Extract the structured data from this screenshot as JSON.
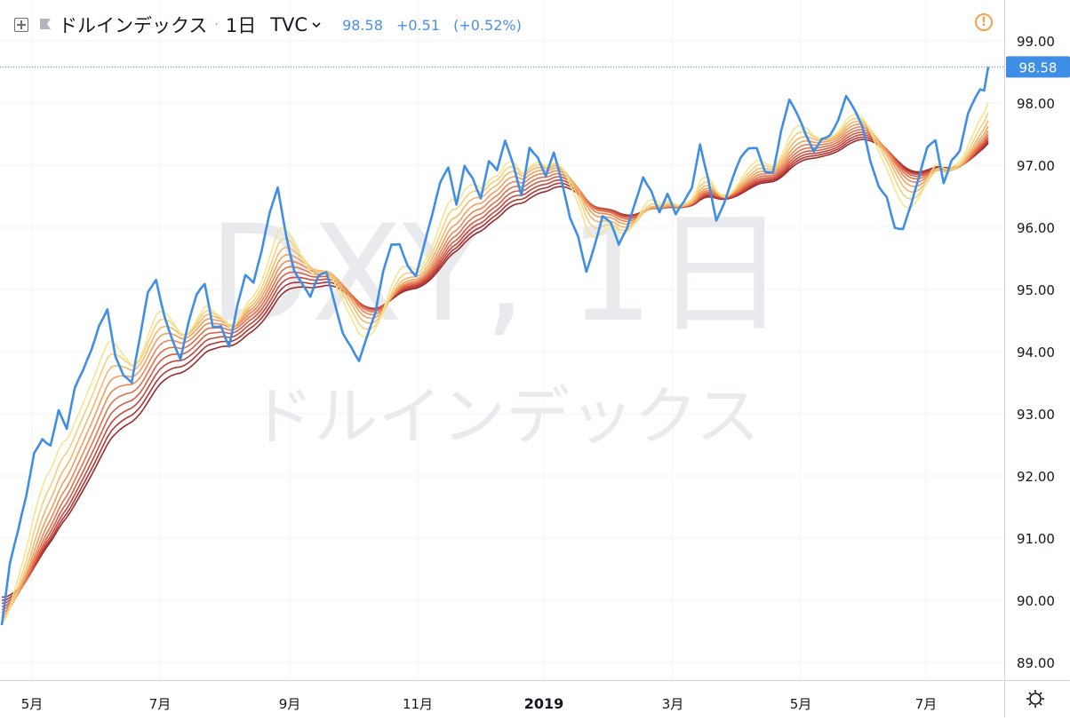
{
  "header": {
    "title": "ドルインデックス",
    "separator": "·",
    "interval": "1日",
    "exchange": "TVC",
    "last": "98.58",
    "change": "+0.51",
    "change_pct": "(+0.52%)"
  },
  "watermark": {
    "symbol": "DXY, 1日",
    "name": "ドルインデックス"
  },
  "colors": {
    "price_line": "#3f8ee6",
    "accent_quote": "#4a90e2",
    "ribbon": [
      "#f6e58d",
      "#f7d079",
      "#f5b76a",
      "#f29f5d",
      "#ec8753",
      "#e3704b",
      "#d65b43",
      "#c6463b",
      "#b13535",
      "#9a2b2b"
    ],
    "warn": "#f7a14a"
  },
  "price_axis": {
    "last_label": "98.58"
  },
  "chart_data": {
    "type": "line",
    "title": "ドルインデックス",
    "xlabel": "",
    "ylabel": "",
    "ylim": [
      88.8,
      99.3
    ],
    "x_tick_labels": [
      "5月",
      "7月",
      "9月",
      "11月",
      "2019",
      "3月",
      "5月",
      "7月"
    ],
    "y_ticks": [
      89,
      90,
      91,
      92,
      93,
      94,
      95,
      96,
      97,
      98,
      99
    ],
    "y_tick_labels": [
      "89.00",
      "90.00",
      "91.00",
      "92.00",
      "93.00",
      "94.00",
      "95.00",
      "96.00",
      "97.00",
      "98.00",
      "99.00"
    ],
    "last_value": 98.58,
    "grid": true,
    "price_anchors": [
      [
        0,
        89.6
      ],
      [
        2,
        90.5
      ],
      [
        4,
        91.0
      ],
      [
        6,
        91.6
      ],
      [
        8,
        92.4
      ],
      [
        10,
        92.7
      ],
      [
        12,
        92.6
      ],
      [
        14,
        93.1
      ],
      [
        16,
        92.7
      ],
      [
        18,
        93.3
      ],
      [
        20,
        93.6
      ],
      [
        22,
        94.0
      ],
      [
        24,
        94.5
      ],
      [
        26,
        94.8
      ],
      [
        28,
        94.0
      ],
      [
        30,
        93.6
      ],
      [
        32,
        93.4
      ],
      [
        34,
        94.1
      ],
      [
        36,
        94.9
      ],
      [
        38,
        95.2
      ],
      [
        40,
        94.7
      ],
      [
        42,
        94.3
      ],
      [
        44,
        93.9
      ],
      [
        46,
        94.4
      ],
      [
        48,
        94.8
      ],
      [
        50,
        95.0
      ],
      [
        52,
        94.4
      ],
      [
        54,
        94.5
      ],
      [
        56,
        94.2
      ],
      [
        58,
        94.8
      ],
      [
        60,
        95.2
      ],
      [
        62,
        95.0
      ],
      [
        64,
        95.5
      ],
      [
        66,
        96.2
      ],
      [
        68,
        96.7
      ],
      [
        70,
        96.0
      ],
      [
        72,
        95.4
      ],
      [
        74,
        95.1
      ],
      [
        76,
        94.8
      ],
      [
        78,
        95.1
      ],
      [
        80,
        95.2
      ],
      [
        82,
        94.8
      ],
      [
        84,
        94.4
      ],
      [
        86,
        94.2
      ],
      [
        88,
        93.9
      ],
      [
        90,
        94.2
      ],
      [
        92,
        94.5
      ],
      [
        94,
        95.2
      ],
      [
        96,
        95.7
      ],
      [
        98,
        95.8
      ],
      [
        100,
        95.5
      ],
      [
        102,
        95.3
      ],
      [
        104,
        95.7
      ],
      [
        106,
        96.1
      ],
      [
        108,
        96.6
      ],
      [
        110,
        96.9
      ],
      [
        112,
        96.4
      ],
      [
        114,
        97.1
      ],
      [
        116,
        96.9
      ],
      [
        118,
        96.5
      ],
      [
        120,
        97.0
      ],
      [
        122,
        96.8
      ],
      [
        124,
        97.3
      ],
      [
        126,
        97.0
      ],
      [
        128,
        96.6
      ],
      [
        130,
        97.4
      ],
      [
        132,
        97.2
      ],
      [
        134,
        96.8
      ],
      [
        136,
        97.1
      ],
      [
        138,
        96.6
      ],
      [
        140,
        96.1
      ],
      [
        142,
        95.9
      ],
      [
        144,
        95.4
      ],
      [
        146,
        95.8
      ],
      [
        148,
        96.2
      ],
      [
        150,
        96.0
      ],
      [
        152,
        95.6
      ],
      [
        154,
        95.9
      ],
      [
        156,
        96.4
      ],
      [
        158,
        96.9
      ],
      [
        160,
        96.7
      ],
      [
        162,
        96.3
      ],
      [
        164,
        96.5
      ],
      [
        166,
        96.1
      ],
      [
        168,
        96.3
      ],
      [
        170,
        96.6
      ],
      [
        172,
        97.4
      ],
      [
        174,
        96.9
      ],
      [
        176,
        96.2
      ],
      [
        178,
        96.4
      ],
      [
        180,
        96.7
      ],
      [
        182,
        97.0
      ],
      [
        184,
        97.2
      ],
      [
        186,
        97.3
      ],
      [
        188,
        97.0
      ],
      [
        190,
        97.0
      ],
      [
        192,
        97.6
      ],
      [
        194,
        98.0
      ],
      [
        196,
        97.7
      ],
      [
        198,
        97.4
      ],
      [
        200,
        97.2
      ],
      [
        202,
        97.5
      ],
      [
        204,
        97.6
      ],
      [
        206,
        97.8
      ],
      [
        208,
        98.1
      ],
      [
        210,
        97.8
      ],
      [
        212,
        97.5
      ],
      [
        214,
        97.0
      ],
      [
        216,
        96.7
      ],
      [
        218,
        96.6
      ],
      [
        220,
        96.1
      ],
      [
        222,
        96.0
      ],
      [
        224,
        96.3
      ],
      [
        226,
        96.7
      ],
      [
        228,
        97.2
      ],
      [
        230,
        97.4
      ],
      [
        232,
        96.8
      ],
      [
        234,
        97.2
      ],
      [
        236,
        97.3
      ],
      [
        238,
        97.8
      ],
      [
        240,
        98.0
      ],
      [
        242,
        98.2
      ],
      [
        243,
        98.58
      ]
    ]
  }
}
